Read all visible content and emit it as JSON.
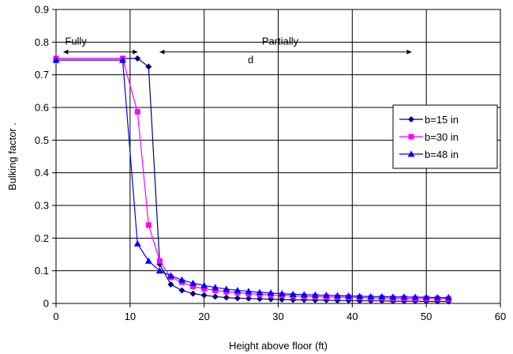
{
  "chart_data": {
    "type": "line",
    "title": "",
    "xlabel": "Height above floor (ft)",
    "ylabel": "Bulking factor  .",
    "xlim": [
      0,
      60
    ],
    "ylim": [
      0,
      0.9
    ],
    "xticks": [
      0,
      10,
      20,
      30,
      40,
      50,
      60
    ],
    "yticks": [
      0,
      0.1,
      0.2,
      0.3,
      0.4,
      0.5,
      0.6,
      0.7,
      0.8,
      0.9
    ],
    "grid": true,
    "legend_position": "right",
    "annotations": [
      {
        "text": "Fully",
        "from_x": 1,
        "to_x": 11,
        "y": 0.77
      },
      {
        "text": "Partially",
        "from_x": 14,
        "to_x": 48,
        "y": 0.77
      },
      {
        "text": "d",
        "x": 25,
        "y": 0.74
      }
    ],
    "series": [
      {
        "name": "b=15 in",
        "color": "#000080",
        "marker": "diamond",
        "x": [
          0,
          9,
          11,
          12.5,
          14,
          15.5,
          17,
          18.5,
          20,
          21.5,
          23,
          24.5,
          26,
          27.5,
          29,
          30.5,
          32,
          33.5,
          35,
          36.5,
          38,
          39.5,
          41,
          42.5,
          44,
          45.5,
          47,
          48.5,
          50,
          51.5,
          53
        ],
        "y": [
          0.75,
          0.75,
          0.75,
          0.725,
          0.12,
          0.058,
          0.04,
          0.03,
          0.025,
          0.021,
          0.018,
          0.016,
          0.015,
          0.014,
          0.013,
          0.012,
          0.011,
          0.011,
          0.01,
          0.01,
          0.009,
          0.009,
          0.008,
          0.008,
          0.008,
          0.007,
          0.007,
          0.007,
          0.006,
          0.006,
          0.006
        ]
      },
      {
        "name": "b=30 in",
        "color": "#ff00ff",
        "marker": "square",
        "x": [
          0,
          9,
          11,
          12.5,
          14,
          15.5,
          17,
          18.5,
          20,
          21.5,
          23,
          24.5,
          26,
          27.5,
          29,
          30.5,
          32,
          33.5,
          35,
          36.5,
          38,
          39.5,
          41,
          42.5,
          44,
          45.5,
          47,
          48.5,
          50,
          51.5,
          53
        ],
        "y": [
          0.75,
          0.75,
          0.587,
          0.24,
          0.13,
          0.08,
          0.065,
          0.052,
          0.045,
          0.04,
          0.036,
          0.033,
          0.03,
          0.028,
          0.026,
          0.025,
          0.023,
          0.022,
          0.021,
          0.02,
          0.019,
          0.019,
          0.018,
          0.017,
          0.017,
          0.016,
          0.016,
          0.015,
          0.015,
          0.015,
          0.014
        ]
      },
      {
        "name": "b=48 in",
        "color": "#0000ff",
        "marker": "triangle",
        "x": [
          0,
          9,
          11,
          12.5,
          14,
          15.5,
          17,
          18.5,
          20,
          21.5,
          23,
          24.5,
          26,
          27.5,
          29,
          30.5,
          32,
          33.5,
          35,
          36.5,
          38,
          39.5,
          41,
          42.5,
          44,
          45.5,
          47,
          48.5,
          50,
          51.5,
          53
        ],
        "y": [
          0.745,
          0.745,
          0.183,
          0.13,
          0.1,
          0.085,
          0.072,
          0.062,
          0.055,
          0.049,
          0.044,
          0.04,
          0.037,
          0.034,
          0.032,
          0.03,
          0.028,
          0.027,
          0.026,
          0.025,
          0.024,
          0.023,
          0.022,
          0.021,
          0.021,
          0.02,
          0.02,
          0.019,
          0.019,
          0.018,
          0.018
        ]
      }
    ]
  }
}
